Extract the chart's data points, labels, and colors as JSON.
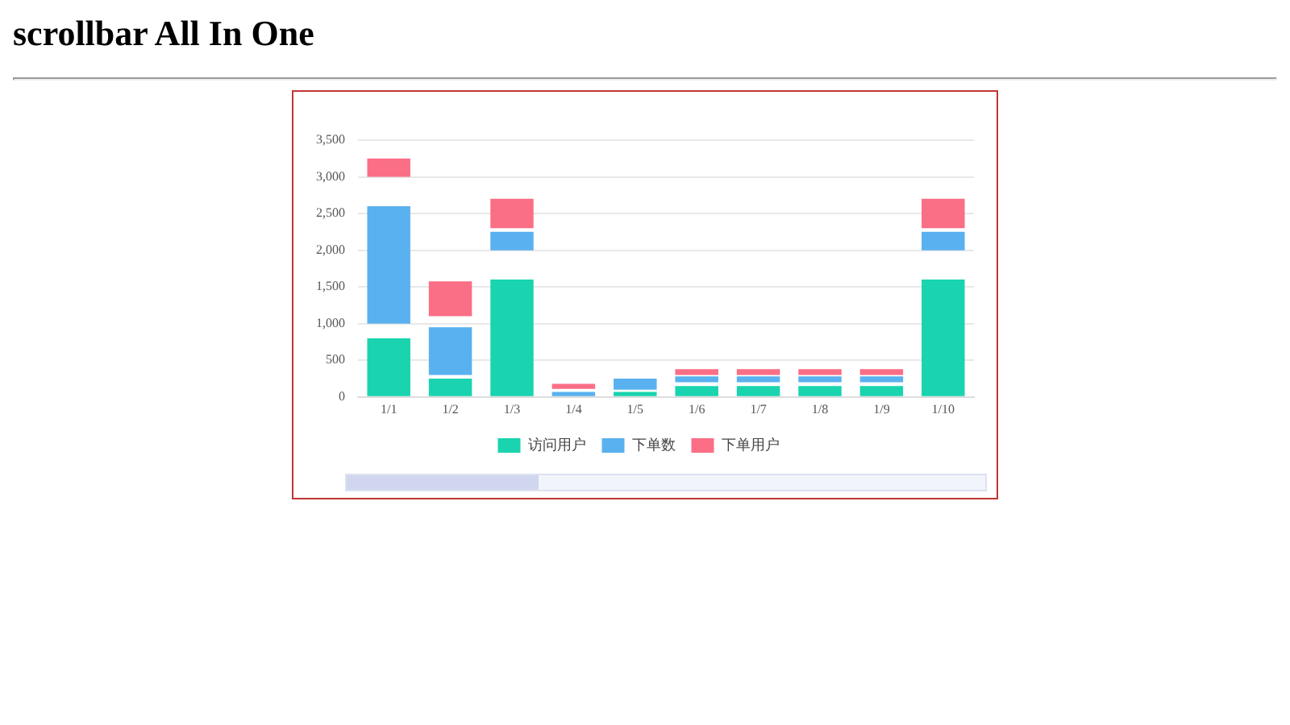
{
  "chart_data": {
    "type": "bar",
    "title": "scrollbar All In One",
    "categories": [
      "1/1",
      "1/2",
      "1/3",
      "1/4",
      "1/5",
      "1/6",
      "1/7",
      "1/8",
      "1/9",
      "1/10"
    ],
    "series": [
      {
        "name": "访问用户",
        "color": "#19d4ae",
        "base": [
          0,
          0,
          0,
          null,
          0,
          0,
          0,
          0,
          0,
          0
        ],
        "values": [
          800,
          250,
          1600,
          null,
          70,
          150,
          150,
          150,
          150,
          1600
        ]
      },
      {
        "name": "下单数",
        "color": "#5ab1ef",
        "base": [
          1000,
          300,
          2000,
          0,
          100,
          200,
          200,
          200,
          200,
          2000
        ],
        "values": [
          1600,
          650,
          250,
          70,
          150,
          80,
          80,
          80,
          80,
          250
        ]
      },
      {
        "name": "下单用户",
        "color": "#fa6e86",
        "base": [
          3000,
          1100,
          2300,
          110,
          null,
          300,
          300,
          300,
          300,
          2300
        ],
        "values": [
          250,
          475,
          400,
          70,
          null,
          80,
          80,
          80,
          80,
          400
        ]
      }
    ],
    "ylim": [
      0,
      3500
    ],
    "yticks": [
      0,
      {
        "value": 500,
        "label": "500"
      },
      {
        "value": 1000,
        "label": "1,000"
      },
      {
        "value": 1500,
        "label": "1,500"
      },
      {
        "value": 2000,
        "label": "2,000"
      },
      {
        "value": 2500,
        "label": "2,500"
      },
      {
        "value": 3000,
        "label": "3,000"
      },
      {
        "value": 3500,
        "label": "3,500"
      }
    ],
    "grid": "y",
    "legend": "bottom"
  }
}
